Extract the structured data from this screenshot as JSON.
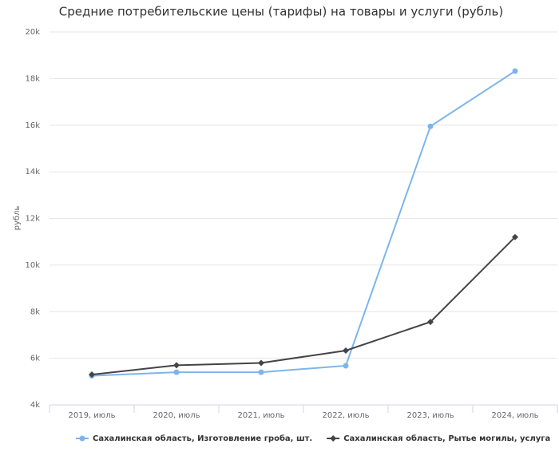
{
  "chart_data": {
    "type": "line",
    "title": "Средние потребительские цены (тарифы) на товары и услуги (рубль)",
    "y_label": "рубль",
    "categories": [
      "2019, июль",
      "2020, июль",
      "2021, июль",
      "2022, июль",
      "2023, июль",
      "2024, июль"
    ],
    "series": [
      {
        "name": "Сахалинская область, Изготовление гроба, шт.",
        "color": "#7cb5ec",
        "marker": "circle",
        "values": [
          5250,
          5400,
          5400,
          5680,
          15950,
          18320
        ]
      },
      {
        "name": "Сахалинская область, Рытье могилы, услуга",
        "color": "#434348",
        "marker": "diamond",
        "values": [
          5300,
          5700,
          5800,
          6330,
          7560,
          11200
        ]
      }
    ],
    "ylim": [
      4000,
      20000
    ],
    "yticks": [
      {
        "value": 4000,
        "label": "4k"
      },
      {
        "value": 6000,
        "label": "6k"
      },
      {
        "value": 8000,
        "label": "8k"
      },
      {
        "value": 10000,
        "label": "10k"
      },
      {
        "value": 12000,
        "label": "12k"
      },
      {
        "value": 14000,
        "label": "14k"
      },
      {
        "value": 16000,
        "label": "16k"
      },
      {
        "value": 18000,
        "label": "18k"
      },
      {
        "value": 20000,
        "label": "20k"
      }
    ],
    "grid": true
  }
}
